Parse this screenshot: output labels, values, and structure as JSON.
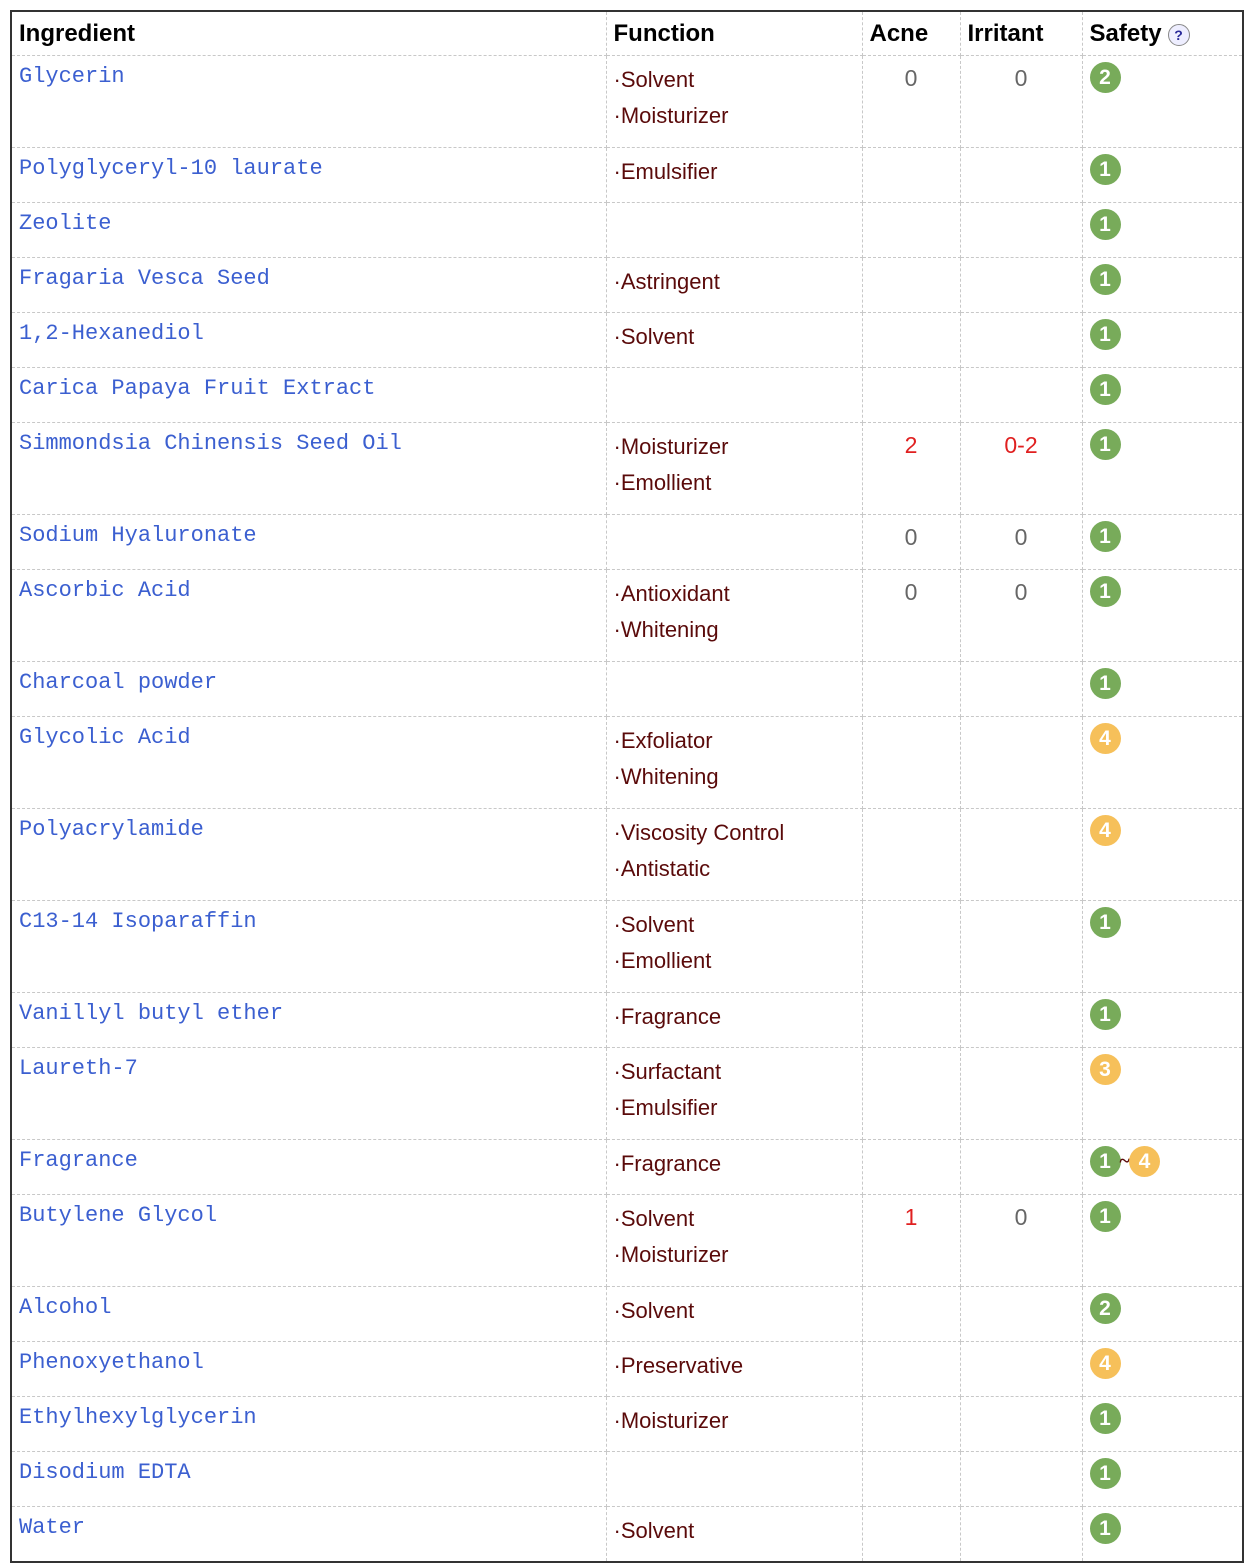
{
  "headers": {
    "ingredient": "Ingredient",
    "function": "Function",
    "acne": "Acne",
    "irritant": "Irritant",
    "safety": "Safety",
    "help_icon": "question-balloon-icon"
  },
  "colors": {
    "green": "#78ab5a",
    "orange": "#f6c05a",
    "red": "#e02020",
    "link": "#3b5fd0",
    "function": "#5a0a0a"
  },
  "rows": [
    {
      "name": "Glycerin",
      "functions": [
        "·Solvent",
        "·Moisturizer"
      ],
      "acne": "0",
      "irritant": "0",
      "safety": [
        "2"
      ]
    },
    {
      "name": "Polyglyceryl-10 laurate",
      "functions": [
        "·Emulsifier"
      ],
      "acne": "",
      "irritant": "",
      "safety": [
        "1"
      ]
    },
    {
      "name": "Zeolite",
      "functions": [],
      "acne": "",
      "irritant": "",
      "safety": [
        "1"
      ]
    },
    {
      "name": "Fragaria Vesca Seed",
      "functions": [
        "·Astringent"
      ],
      "acne": "",
      "irritant": "",
      "safety": [
        "1"
      ]
    },
    {
      "name": "1,2-Hexanediol",
      "functions": [
        "·Solvent"
      ],
      "acne": "",
      "irritant": "",
      "safety": [
        "1"
      ]
    },
    {
      "name": "Carica Papaya Fruit Extract",
      "functions": [],
      "acne": "",
      "irritant": "",
      "safety": [
        "1"
      ]
    },
    {
      "name": "Simmondsia Chinensis Seed Oil",
      "functions": [
        "·Moisturizer",
        "·Emollient"
      ],
      "acne": "2",
      "irritant": "0-2",
      "safety": [
        "1"
      ]
    },
    {
      "name": "Sodium Hyaluronate",
      "functions": [],
      "acne": "0",
      "irritant": "0",
      "safety": [
        "1"
      ]
    },
    {
      "name": "Ascorbic Acid",
      "functions": [
        "·Antioxidant",
        "·Whitening"
      ],
      "acne": "0",
      "irritant": "0",
      "safety": [
        "1"
      ]
    },
    {
      "name": "Charcoal powder",
      "functions": [],
      "acne": "",
      "irritant": "",
      "safety": [
        "1"
      ]
    },
    {
      "name": "Glycolic Acid",
      "functions": [
        "·Exfoliator",
        "·Whitening"
      ],
      "acne": "",
      "irritant": "",
      "safety": [
        "4"
      ]
    },
    {
      "name": "Polyacrylamide",
      "functions": [
        "·Viscosity Control",
        "·Antistatic"
      ],
      "acne": "",
      "irritant": "",
      "safety": [
        "4"
      ]
    },
    {
      "name": "C13-14 Isoparaffin",
      "functions": [
        "·Solvent",
        "·Emollient"
      ],
      "acne": "",
      "irritant": "",
      "safety": [
        "1"
      ]
    },
    {
      "name": "Vanillyl butyl ether",
      "functions": [
        "·Fragrance"
      ],
      "acne": "",
      "irritant": "",
      "safety": [
        "1"
      ]
    },
    {
      "name": "Laureth-7",
      "functions": [
        "·Surfactant",
        "·Emulsifier"
      ],
      "acne": "",
      "irritant": "",
      "safety": [
        "3"
      ]
    },
    {
      "name": "Fragrance",
      "functions": [
        "·Fragrance"
      ],
      "acne": "",
      "irritant": "",
      "safety": [
        "1",
        "4"
      ]
    },
    {
      "name": "Butylene Glycol",
      "functions": [
        "·Solvent",
        "·Moisturizer"
      ],
      "acne": "1",
      "irritant": "0",
      "safety": [
        "1"
      ]
    },
    {
      "name": "Alcohol",
      "functions": [
        "·Solvent"
      ],
      "acne": "",
      "irritant": "",
      "safety": [
        "2"
      ]
    },
    {
      "name": "Phenoxyethanol",
      "functions": [
        "·Preservative"
      ],
      "acne": "",
      "irritant": "",
      "safety": [
        "4"
      ]
    },
    {
      "name": "Ethylhexylglycerin",
      "functions": [
        "·Moisturizer"
      ],
      "acne": "",
      "irritant": "",
      "safety": [
        "1"
      ]
    },
    {
      "name": "Disodium EDTA",
      "functions": [],
      "acne": "",
      "irritant": "",
      "safety": [
        "1"
      ]
    },
    {
      "name": "Water",
      "functions": [
        "·Solvent"
      ],
      "acne": "",
      "irritant": "",
      "safety": [
        "1"
      ]
    }
  ],
  "range_separator": "~"
}
